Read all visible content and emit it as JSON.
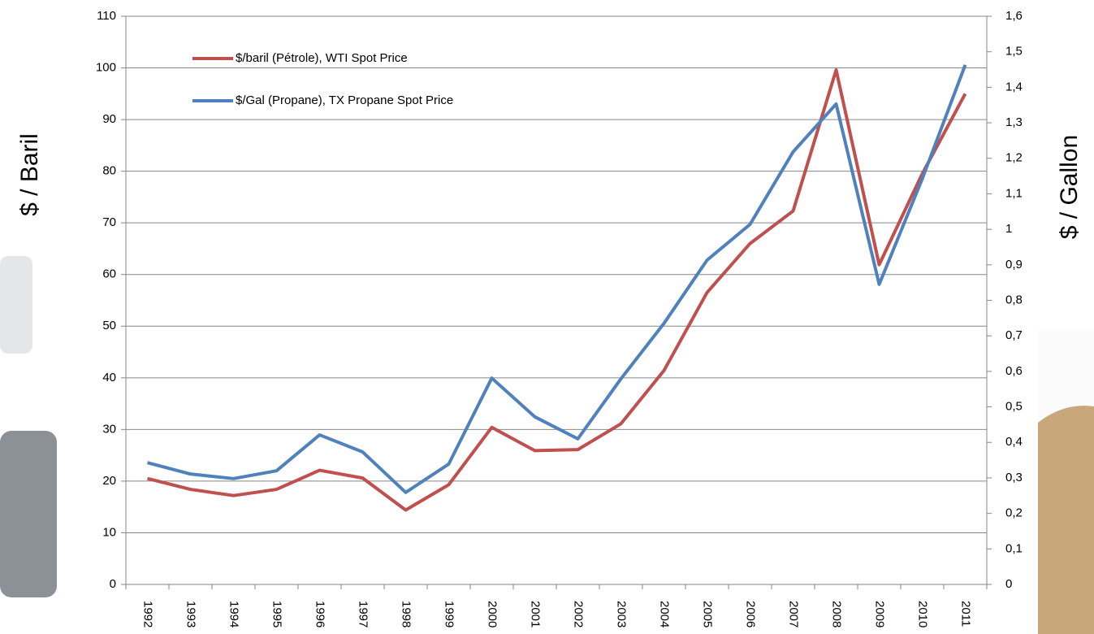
{
  "chart_data": {
    "type": "line",
    "ylabel": "$ / Baril",
    "y2label": "$ / Gallon",
    "categories": [
      "1992",
      "1993",
      "1994",
      "1995",
      "1996",
      "1997",
      "1998",
      "1999",
      "2000",
      "2001",
      "2002",
      "2003",
      "2004",
      "2005",
      "2006",
      "2007",
      "2008",
      "2009",
      "2010",
      "2011"
    ],
    "series": [
      {
        "name": "$/baril (Pétrole), WTI Spot Price",
        "color": "#c0504d",
        "values": [
          20.5,
          18.4,
          17.2,
          18.4,
          22.1,
          20.6,
          14.4,
          19.3,
          30.4,
          25.9,
          26.1,
          31.1,
          41.4,
          56.5,
          66.0,
          72.3,
          99.6,
          61.9,
          79.5,
          95.0
        ]
      },
      {
        "name": "$/Gal (Propane), TX Propane Spot Price",
        "color": "#4f81bd",
        "axis": "y2",
        "values": [
          0.343,
          0.311,
          0.298,
          0.32,
          0.421,
          0.373,
          0.259,
          0.339,
          0.581,
          0.472,
          0.41,
          0.579,
          0.735,
          0.913,
          1.014,
          1.218,
          1.353,
          0.845,
          1.142,
          1.463
        ]
      }
    ],
    "ylim": [
      0,
      110
    ],
    "yticks": [
      0,
      10,
      20,
      30,
      40,
      50,
      60,
      70,
      80,
      90,
      100,
      110
    ],
    "y2lim": [
      0,
      1.6
    ],
    "y2ticks": [
      0,
      {
        "value": 0.1,
        "label": "0,1"
      },
      {
        "value": 0.2,
        "label": "0,2"
      },
      {
        "value": 0.3,
        "label": "0,3"
      },
      {
        "value": 0.4,
        "label": "0,4"
      },
      {
        "value": 0.5,
        "label": "0,5"
      },
      {
        "value": 0.6,
        "label": "0,6"
      },
      {
        "value": 0.7,
        "label": "0,7"
      },
      {
        "value": 0.8,
        "label": "0,8"
      },
      {
        "value": 0.9,
        "label": "0,9"
      },
      1,
      {
        "value": 1.1,
        "label": "1,1"
      },
      {
        "value": 1.2,
        "label": "1,2"
      },
      {
        "value": 1.3,
        "label": "1,3"
      },
      {
        "value": 1.4,
        "label": "1,4"
      },
      {
        "value": 1.5,
        "label": "1,5"
      },
      {
        "value": 1.6,
        "label": "1,6"
      }
    ],
    "grid": true,
    "legend": "upper left"
  }
}
